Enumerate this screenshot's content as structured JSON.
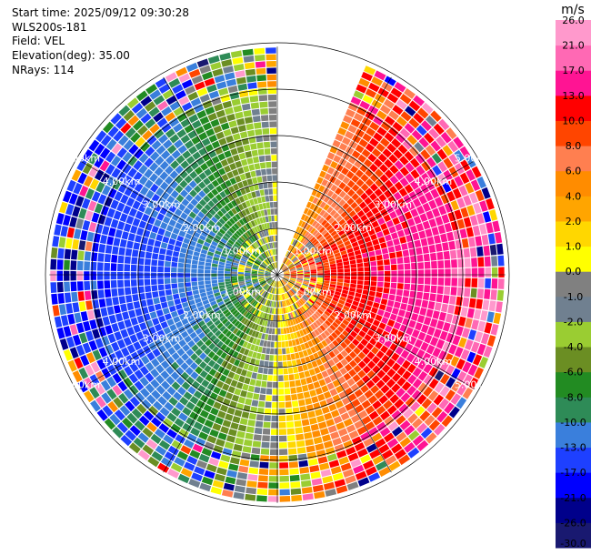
{
  "info": {
    "start_time": "Start time: 2025/09/12 09:30:28",
    "instrument": "WLS200s-181",
    "field": "Field: VEL",
    "elevation": "Elevation(deg): 35.00",
    "nrays": "NRays: 114"
  },
  "chart_data": {
    "type": "heatmap",
    "projection": "polar-ppi",
    "field": "VEL",
    "units": "m/s",
    "range_rings_km": [
      1,
      2,
      3,
      4,
      5
    ],
    "ring_labels": [
      "1.00km",
      "2.00km",
      "3.00km",
      "4.00km",
      "5.00km"
    ],
    "max_range_km": 5.9,
    "nrays": 114,
    "missing_sector_deg": [
      0,
      23
    ],
    "colorbar": {
      "label": "m/s",
      "ticks": [
        "-30.0",
        "-26.0",
        "-21.0",
        "-17.0",
        "-13.0",
        "-10.0",
        "-8.0",
        "-6.0",
        "-4.0",
        "-2.0",
        "-1.0",
        "0.0",
        "1.0",
        "2.0",
        "4.0",
        "6.0",
        "8.0",
        "10.0",
        "13.0",
        "17.0",
        "21.0",
        "26.0"
      ],
      "colors": [
        "#191970",
        "#00008b",
        "#0000ff",
        "#1e40ff",
        "#3a7fdc",
        "#2e8b57",
        "#228b22",
        "#6b8e23",
        "#9acd32",
        "#708090",
        "#808080",
        "#ffff00",
        "#ffd700",
        "#ffa500",
        "#ff8c00",
        "#ff7f50",
        "#ff4500",
        "#ff0000",
        "#ff1493",
        "#ff69b4",
        "#ff99cc"
      ]
    },
    "velocity_pattern": {
      "approaching_bearing_deg": 270,
      "receding_bearing_deg": 90,
      "peak_positive_ms": 17,
      "peak_negative_ms": -17
    }
  }
}
